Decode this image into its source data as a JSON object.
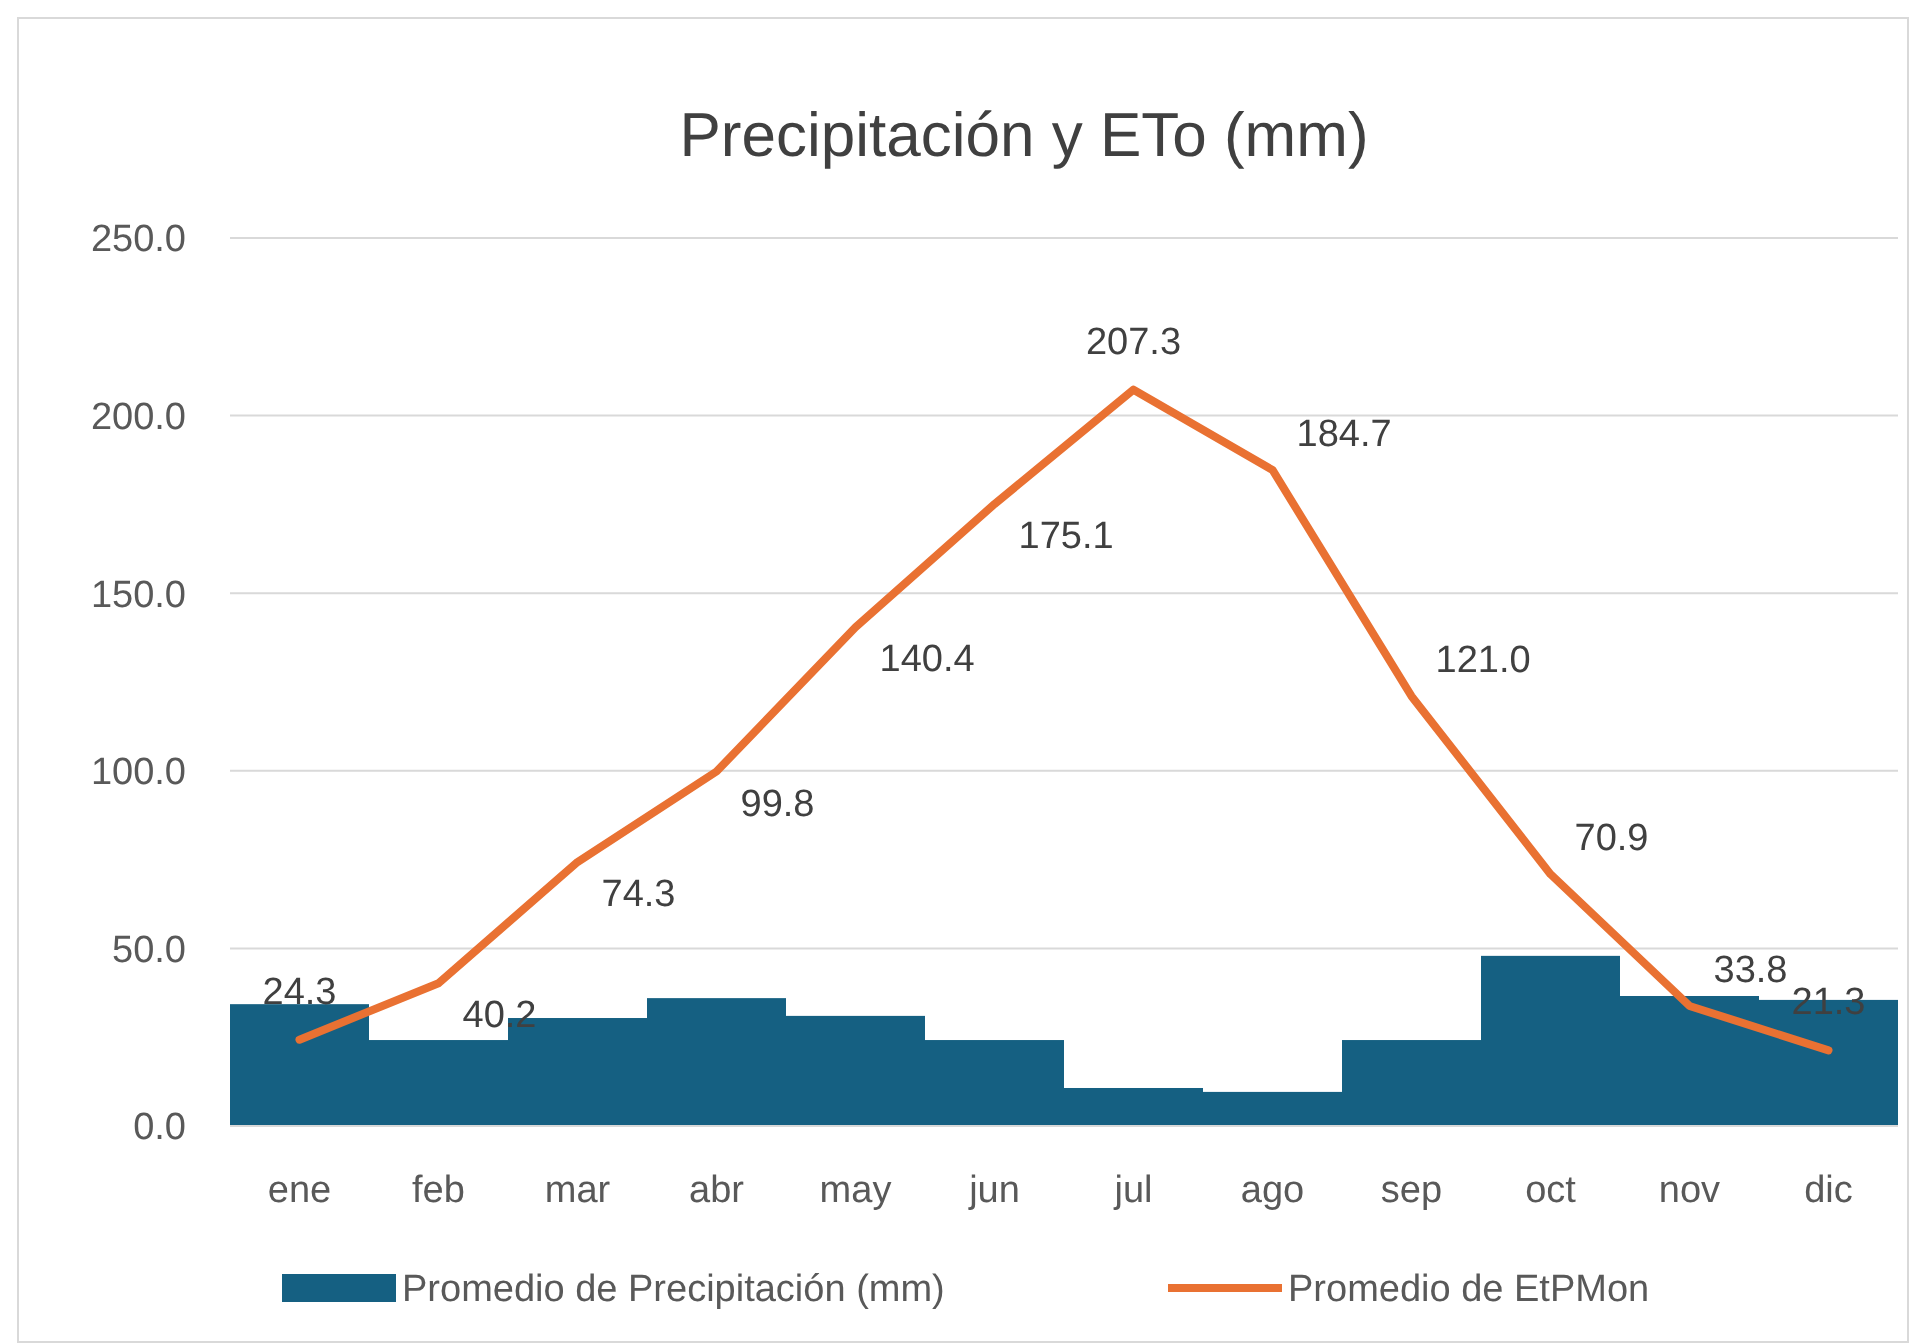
{
  "chart_data": {
    "type": "bar",
    "title": "Precipitación y ETo (mm)",
    "categories": [
      "ene",
      "feb",
      "mar",
      "abr",
      "may",
      "jun",
      "jul",
      "ago",
      "sep",
      "oct",
      "nov",
      "dic"
    ],
    "series": [
      {
        "name": "Promedio de Precipitación (mm)",
        "color": "#156082",
        "values": [
          34.3,
          24.2,
          30.4,
          36.0,
          31.0,
          24.2,
          10.7,
          9.6,
          24.2,
          47.9,
          36.6,
          35.5
        ]
      },
      {
        "name": "Promedio de EtPMon",
        "type": "line",
        "color": "#e97132",
        "values": [
          24.3,
          40.2,
          74.3,
          99.8,
          140.4,
          175.1,
          207.3,
          184.7,
          121.0,
          70.9,
          33.8,
          21.3
        ],
        "value_labels": [
          "24.3",
          "40.2",
          "74.3",
          "99.8",
          "140.4",
          "175.1",
          "207.3",
          "184.7",
          "121.0",
          "70.9",
          "33.8",
          "21.3"
        ]
      }
    ],
    "ylim": [
      0,
      250
    ],
    "yticks": [
      {
        "value": 0,
        "label": "0.0"
      },
      {
        "value": 50,
        "label": "50.0"
      },
      {
        "value": 100,
        "label": "100.0"
      },
      {
        "value": 150,
        "label": "150.0"
      },
      {
        "value": 200,
        "label": "200.0"
      },
      {
        "value": 250,
        "label": "250.0"
      }
    ],
    "grid": "y",
    "legend": "bottom",
    "marker": "none"
  }
}
